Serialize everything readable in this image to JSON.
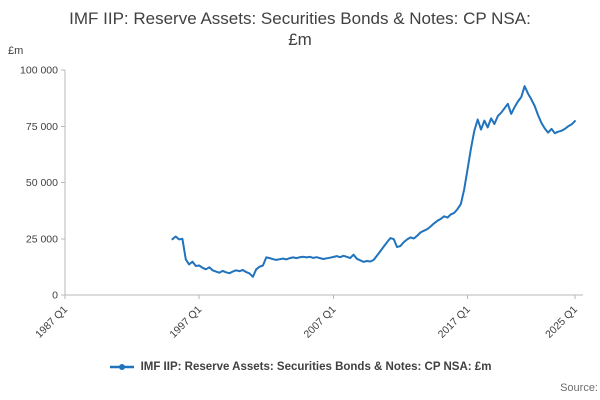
{
  "chart_data": {
    "type": "line",
    "title": "IMF IIP: Reserve Assets: Securities Bonds & Notes: CP NSA:\n£m",
    "unit_label": "£m",
    "xlim": [
      1987,
      2025.6
    ],
    "ylim": [
      0,
      100000
    ],
    "grid": false,
    "legend_position": "bottom",
    "y_ticks": [
      {
        "value": 0,
        "label": "0"
      },
      {
        "value": 25000,
        "label": "25 000"
      },
      {
        "value": 50000,
        "label": "50 000"
      },
      {
        "value": 75000,
        "label": "75 000"
      },
      {
        "value": 100000,
        "label": "100 000"
      }
    ],
    "x_ticks": [
      {
        "value": 1987,
        "label": "1987 Q1"
      },
      {
        "value": 1997,
        "label": "1997 Q1"
      },
      {
        "value": 2007,
        "label": "2007 Q1"
      },
      {
        "value": 2017,
        "label": "2017 Q1"
      },
      {
        "value": 2025,
        "label": "2025 Q1"
      }
    ],
    "series": [
      {
        "name": "IMF IIP: Reserve Assets: Securities Bonds & Notes: CP NSA: £m",
        "color": "#2073bc",
        "frequency": "quarterly",
        "start_year": 1995,
        "start_quarter": 1,
        "values": [
          24800,
          26000,
          24700,
          25000,
          15800,
          13600,
          14800,
          12900,
          13100,
          12100,
          11400,
          12300,
          11000,
          10400,
          9900,
          10700,
          10100,
          9700,
          10400,
          11000,
          10600,
          11100,
          10200,
          9600,
          8100,
          11400,
          12600,
          13100,
          16700,
          16400,
          15900,
          15600,
          15900,
          16200,
          15800,
          16400,
          16700,
          16400,
          16800,
          17000,
          16700,
          17000,
          16500,
          16800,
          16400,
          16000,
          16300,
          16600,
          16900,
          17300,
          16800,
          17400,
          17000,
          16400,
          17900,
          16100,
          15400,
          14700,
          15100,
          14900,
          15600,
          17500,
          19500,
          21500,
          23500,
          25300,
          24800,
          21300,
          21800,
          23500,
          24700,
          25600,
          25100,
          26400,
          27800,
          28600,
          29300,
          30500,
          31800,
          33000,
          33800,
          35000,
          34400,
          35800,
          36500,
          38200,
          40500,
          47000,
          56000,
          65000,
          73000,
          78000,
          73500,
          77500,
          74500,
          78500,
          76000,
          79500,
          81000,
          83000,
          85000,
          80500,
          83500,
          86000,
          88000,
          92800,
          89500,
          87000,
          84000,
          80000,
          76500,
          74000,
          72200,
          73800,
          71900,
          72600,
          73000,
          73800,
          75000,
          75800,
          77300
        ]
      }
    ]
  },
  "footer": {
    "source_label": "Source:"
  }
}
